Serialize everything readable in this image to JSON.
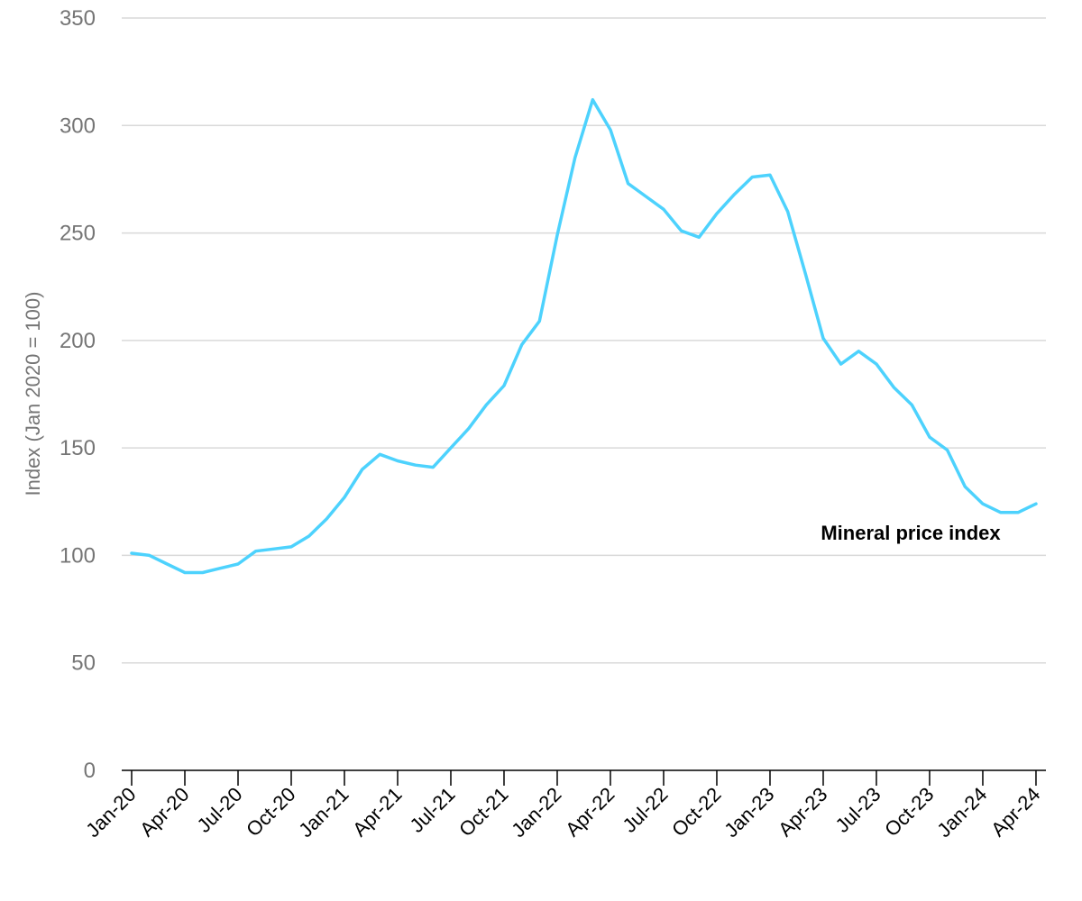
{
  "chart_data": {
    "type": "line",
    "title": "",
    "xlabel": "",
    "ylabel": "Index (Jan 2020 = 100)",
    "ylim": [
      0,
      350
    ],
    "yticks": [
      0,
      50,
      100,
      150,
      200,
      250,
      300,
      350
    ],
    "grid": "horizontal",
    "legend": "none",
    "x_tick_labels": [
      "Jan-20",
      "Apr-20",
      "Jul-20",
      "Oct-20",
      "Jan-21",
      "Apr-21",
      "Jul-21",
      "Oct-21",
      "Jan-22",
      "Apr-22",
      "Jul-22",
      "Oct-22",
      "Jan-23",
      "Apr-23",
      "Jul-23",
      "Oct-23",
      "Jan-24",
      "Apr-24"
    ],
    "x": [
      "Jan-20",
      "Feb-20",
      "Mar-20",
      "Apr-20",
      "May-20",
      "Jun-20",
      "Jul-20",
      "Aug-20",
      "Sep-20",
      "Oct-20",
      "Nov-20",
      "Dec-20",
      "Jan-21",
      "Feb-21",
      "Mar-21",
      "Apr-21",
      "May-21",
      "Jun-21",
      "Jul-21",
      "Aug-21",
      "Sep-21",
      "Oct-21",
      "Nov-21",
      "Dec-21",
      "Jan-22",
      "Feb-22",
      "Mar-22",
      "Apr-22",
      "May-22",
      "Jun-22",
      "Jul-22",
      "Aug-22",
      "Sep-22",
      "Oct-22",
      "Nov-22",
      "Dec-22",
      "Jan-23",
      "Feb-23",
      "Mar-23",
      "Apr-23",
      "May-23",
      "Jun-23",
      "Jul-23",
      "Aug-23",
      "Sep-23",
      "Oct-23",
      "Nov-23",
      "Dec-23",
      "Jan-24",
      "Feb-24",
      "Mar-24",
      "Apr-24"
    ],
    "series": [
      {
        "name": "Mineral price index",
        "color": "#4dd2fd",
        "values": [
          101,
          100,
          96,
          92,
          92,
          94,
          96,
          102,
          103,
          104,
          109,
          117,
          127,
          140,
          147,
          144,
          142,
          141,
          150,
          159,
          170,
          179,
          198,
          209,
          249,
          285,
          312,
          298,
          273,
          267,
          261,
          251,
          248,
          259,
          268,
          276,
          277,
          260,
          231,
          201,
          189,
          195,
          189,
          178,
          170,
          155,
          149,
          132,
          124,
          120,
          120,
          124
        ]
      }
    ]
  },
  "colors": {
    "line": "#4dd2fd",
    "grid": "#d9d9d9",
    "axis": "#000000",
    "ytick_text": "#757575",
    "xtick_text": "#000000"
  }
}
